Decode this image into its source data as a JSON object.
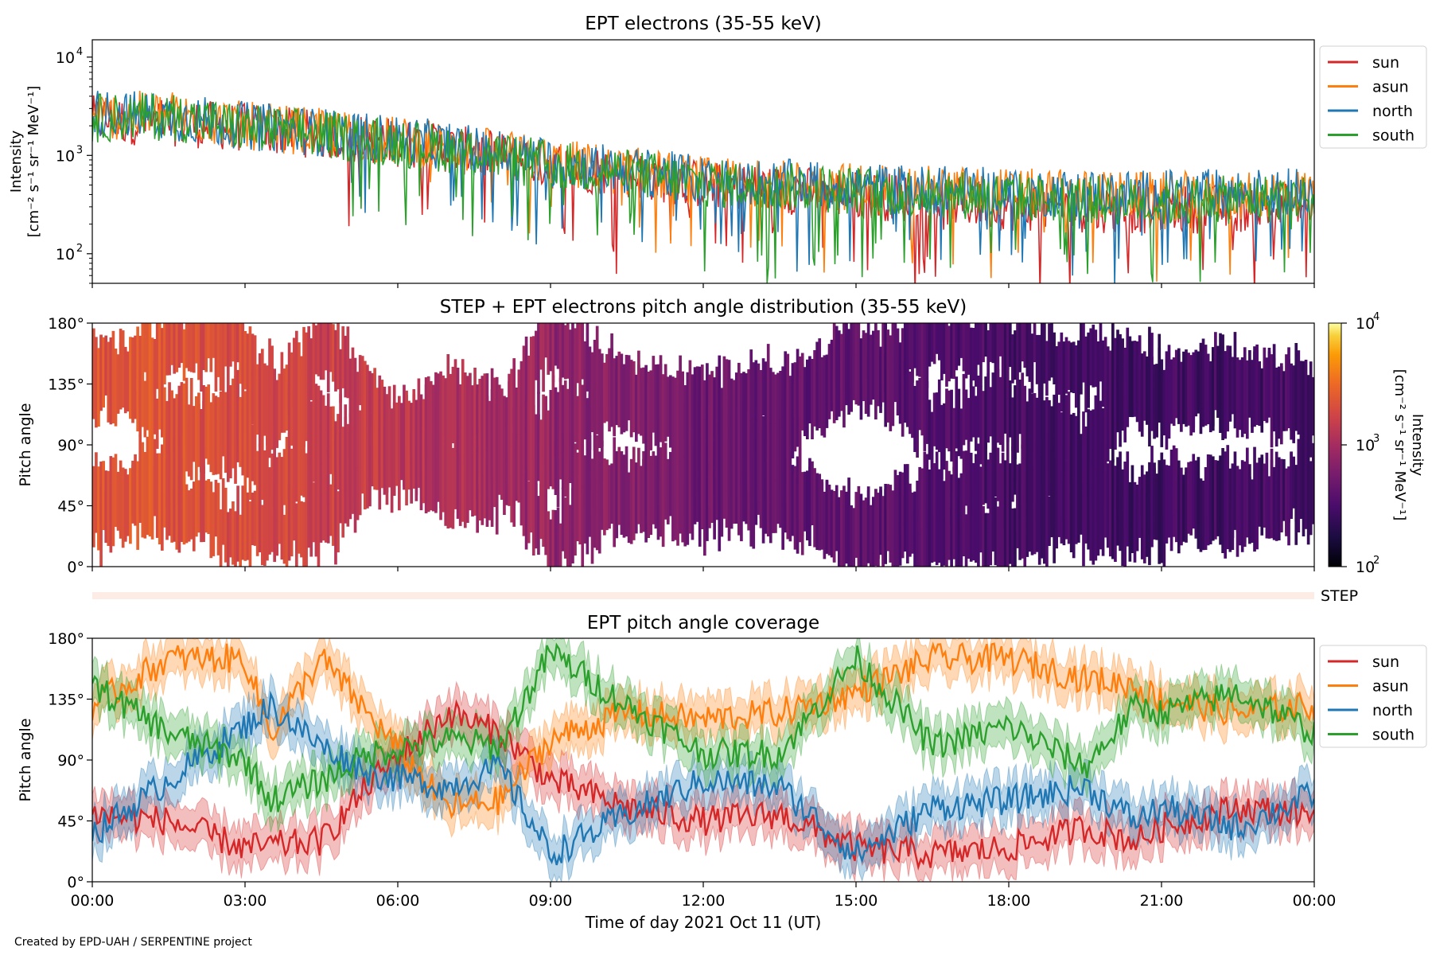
{
  "footer": {
    "credit": "Created by EPD-UAH / SERPENTINE project"
  },
  "step_strip": {
    "label": "STEP"
  },
  "colors": {
    "sun": "#d62728",
    "asun": "#ff7f0e",
    "north": "#1f77b4",
    "south": "#2ca02c"
  },
  "chart_data": [
    {
      "type": "line",
      "title": "EPT electrons (35-55 keV)",
      "ylabel_line1": "Intensity",
      "ylabel_line2": "[cm⁻² s⁻¹ sr⁻¹ MeV⁻¹]",
      "yscale": "log",
      "ylim": [
        50,
        15000
      ],
      "yticks": [
        {
          "value": 100,
          "base": "10",
          "exp": "2"
        },
        {
          "value": 1000,
          "base": "10",
          "exp": "3"
        },
        {
          "value": 10000,
          "base": "10",
          "exp": "4"
        }
      ],
      "xlim_hours": [
        0,
        24
      ],
      "legend_position": "outside-right-top",
      "legend": [
        "sun",
        "asun",
        "north",
        "south"
      ],
      "series": [
        {
          "name": "sun",
          "trend": [
            [
              0,
              2300
            ],
            [
              1.5,
              2200
            ],
            [
              3,
              1900
            ],
            [
              6,
              1350
            ],
            [
              9,
              800
            ],
            [
              12,
              500
            ],
            [
              15,
              400
            ],
            [
              18,
              300
            ],
            [
              21,
              280
            ],
            [
              24,
              300
            ]
          ]
        },
        {
          "name": "asun",
          "trend": [
            [
              0,
              2500
            ],
            [
              1.5,
              2600
            ],
            [
              3,
              2000
            ],
            [
              6,
              1400
            ],
            [
              9,
              850
            ],
            [
              12,
              550
            ],
            [
              15,
              480
            ],
            [
              18,
              420
            ],
            [
              21,
              380
            ],
            [
              24,
              420
            ]
          ]
        },
        {
          "name": "north",
          "trend": [
            [
              0,
              2700
            ],
            [
              1.5,
              2500
            ],
            [
              3,
              2000
            ],
            [
              6,
              1450
            ],
            [
              9,
              850
            ],
            [
              12,
              560
            ],
            [
              15,
              480
            ],
            [
              18,
              420
            ],
            [
              21,
              400
            ],
            [
              24,
              430
            ]
          ]
        },
        {
          "name": "south",
          "trend": [
            [
              0,
              2400
            ],
            [
              1.5,
              2500
            ],
            [
              3,
              1900
            ],
            [
              6,
              1350
            ],
            [
              9,
              800
            ],
            [
              12,
              520
            ],
            [
              15,
              440
            ],
            [
              18,
              380
            ],
            [
              21,
              330
            ],
            [
              24,
              380
            ]
          ]
        }
      ]
    },
    {
      "type": "heatmap",
      "title": "STEP + EPT electrons pitch angle distribution (35-55 keV)",
      "ylabel": "Pitch angle",
      "ylim": [
        0,
        180
      ],
      "yticks": [
        "0°",
        "45°",
        "90°",
        "135°",
        "180°"
      ],
      "xlim_hours": [
        0,
        24
      ],
      "colorbar": {
        "label_line1": "Intensity",
        "label_line2": "[cm⁻² s⁻¹ sr⁻¹ MeV⁻¹]",
        "scale": "log",
        "range": [
          100,
          10000
        ],
        "ticks": [
          {
            "value": 100,
            "base": "10",
            "exp": "2"
          },
          {
            "value": 1000,
            "base": "10",
            "exp": "3"
          },
          {
            "value": 10000,
            "base": "10",
            "exp": "4"
          }
        ]
      }
    },
    {
      "type": "line",
      "title": "EPT pitch angle coverage",
      "ylabel": "Pitch angle",
      "ylim": [
        0,
        180
      ],
      "yticks": [
        "0°",
        "45°",
        "90°",
        "135°",
        "180°"
      ],
      "xlabel": "Time of day 2021 Oct 11 (UT)",
      "xticks": [
        "00:00",
        "03:00",
        "06:00",
        "09:00",
        "12:00",
        "15:00",
        "18:00",
        "21:00",
        "00:00"
      ],
      "legend_position": "outside-right-top",
      "legend": [
        "sun",
        "asun",
        "north",
        "south"
      ],
      "series": [
        {
          "name": "sun",
          "trend": [
            [
              0,
              50
            ],
            [
              1.5,
              45
            ],
            [
              3,
              25
            ],
            [
              4.5,
              30
            ],
            [
              5.5,
              75
            ],
            [
              7,
              125
            ],
            [
              8,
              110
            ],
            [
              9,
              75
            ],
            [
              10.5,
              55
            ],
            [
              12,
              45
            ],
            [
              13.5,
              50
            ],
            [
              15,
              25
            ],
            [
              16.5,
              20
            ],
            [
              18,
              25
            ],
            [
              19.5,
              40
            ],
            [
              20.5,
              30
            ],
            [
              21,
              40
            ],
            [
              22.5,
              55
            ],
            [
              24,
              50
            ]
          ]
        },
        {
          "name": "asun",
          "trend": [
            [
              0,
              130
            ],
            [
              1.5,
              165
            ],
            [
              3,
              165
            ],
            [
              3.5,
              110
            ],
            [
              4.5,
              165
            ],
            [
              5.5,
              120
            ],
            [
              7,
              55
            ],
            [
              8,
              60
            ],
            [
              9,
              105
            ],
            [
              10.5,
              125
            ],
            [
              12,
              120
            ],
            [
              13.5,
              125
            ],
            [
              15,
              140
            ],
            [
              16.5,
              165
            ],
            [
              18,
              165
            ],
            [
              19.5,
              150
            ],
            [
              20.5,
              145
            ],
            [
              21,
              135
            ],
            [
              22.5,
              125
            ],
            [
              24,
              130
            ]
          ]
        },
        {
          "name": "north",
          "trend": [
            [
              0,
              35
            ],
            [
              1.5,
              75
            ],
            [
              3,
              115
            ],
            [
              3.5,
              130
            ],
            [
              4.5,
              100
            ],
            [
              5.5,
              80
            ],
            [
              7,
              70
            ],
            [
              8,
              85
            ],
            [
              9,
              20
            ],
            [
              10.5,
              50
            ],
            [
              12,
              75
            ],
            [
              13.5,
              70
            ],
            [
              15,
              20
            ],
            [
              16.5,
              55
            ],
            [
              18,
              60
            ],
            [
              19.5,
              70
            ],
            [
              20.5,
              45
            ],
            [
              21,
              55
            ],
            [
              22.5,
              40
            ],
            [
              24,
              65
            ]
          ]
        },
        {
          "name": "south",
          "trend": [
            [
              0,
              145
            ],
            [
              1.5,
              110
            ],
            [
              3,
              90
            ],
            [
              3.5,
              60
            ],
            [
              4.5,
              75
            ],
            [
              5.5,
              95
            ],
            [
              7,
              105
            ],
            [
              8,
              100
            ],
            [
              9,
              170
            ],
            [
              10.5,
              130
            ],
            [
              12,
              95
            ],
            [
              13.5,
              95
            ],
            [
              15,
              165
            ],
            [
              16.5,
              100
            ],
            [
              18,
              115
            ],
            [
              19.5,
              85
            ],
            [
              20.5,
              130
            ],
            [
              21,
              125
            ],
            [
              22.5,
              140
            ],
            [
              24,
              110
            ]
          ]
        }
      ]
    }
  ]
}
